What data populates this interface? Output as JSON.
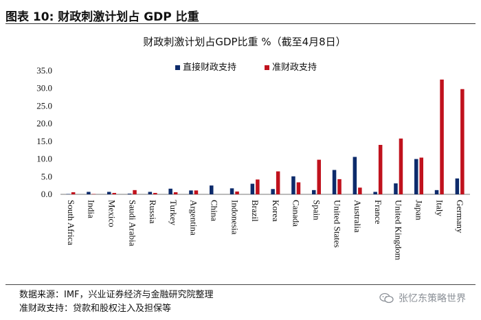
{
  "figure": {
    "label": "图表 10:",
    "title": "财政刺激计划占 GDP 比重"
  },
  "chart_data": {
    "type": "bar",
    "title": "财政刺激计划占GDP比重 %（截至4月8日）",
    "xlabel": "",
    "ylabel": "",
    "ylim": [
      0,
      35
    ],
    "yticks": [
      0,
      5,
      10,
      15,
      20,
      25,
      30,
      35
    ],
    "ytick_labels": [
      "0.0",
      "5.0",
      "10.0",
      "15.0",
      "20.0",
      "25.0",
      "30.0",
      "35.0"
    ],
    "legend_position": "top-center",
    "categories": [
      "South Africa",
      "India",
      "Mexico",
      "Saudi Arabia",
      "Russia",
      "Turkey",
      "Argentina",
      "China",
      "Indonesia",
      "Brazil",
      "Korea",
      "Canada",
      "Spain",
      "United States",
      "Australia",
      "France",
      "United Kingdom",
      "Japan",
      "Italy",
      "Germany"
    ],
    "series": [
      {
        "name": "直接财政支持",
        "color": "#0d2b6b",
        "values": [
          0.1,
          0.7,
          0.7,
          0.2,
          0.7,
          1.6,
          1.1,
          2.5,
          1.7,
          3.0,
          1.5,
          5.1,
          1.2,
          6.9,
          10.6,
          0.7,
          3.1,
          10.0,
          1.2,
          4.5
        ]
      },
      {
        "name": "准财政支持",
        "color": "#c0121d",
        "values": [
          0.6,
          0.1,
          0.4,
          1.2,
          0.4,
          0.6,
          1.1,
          0.0,
          0.8,
          4.2,
          6.5,
          3.4,
          9.8,
          4.3,
          1.9,
          14.0,
          15.8,
          10.4,
          32.5,
          29.8
        ]
      }
    ]
  },
  "footer": {
    "source": "数据来源：IMF，兴业证券经济与金融研究院整理",
    "note": "准财政支持：贷款和股权注入及担保等"
  },
  "watermark": {
    "icon": "wechat-icon",
    "text": "张忆东策略世界"
  }
}
